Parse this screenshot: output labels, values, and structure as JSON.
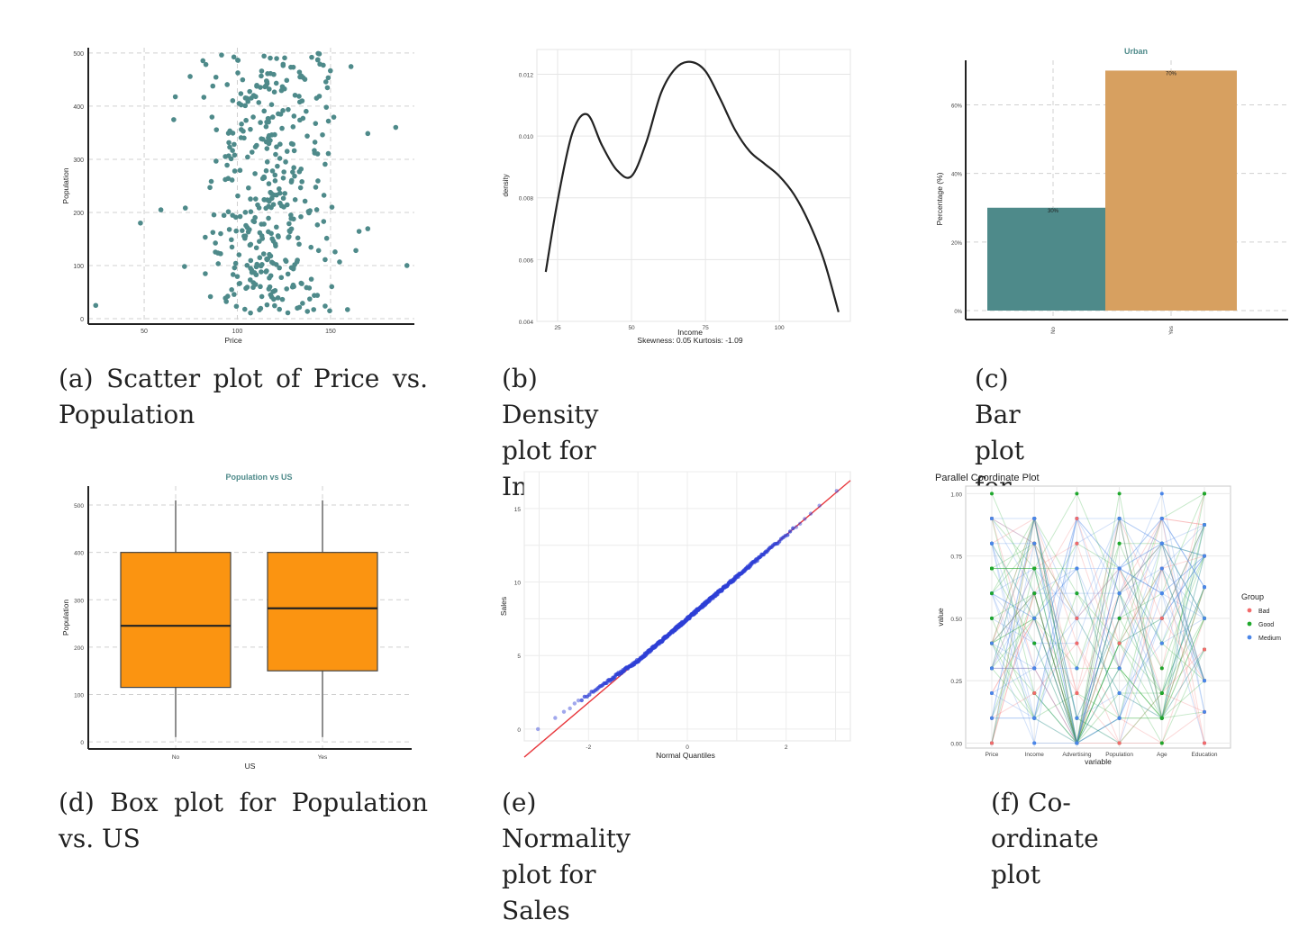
{
  "figures": [
    {
      "caption": "(a) Scatter plot of Price vs. Population"
    },
    {
      "caption": "(b) Density plot for Income"
    },
    {
      "caption": "(c) Bar plot for Urban"
    },
    {
      "caption": "(d) Box plot for Population vs. US"
    },
    {
      "caption": "(e) Normality plot for Sales"
    },
    {
      "caption": "(f) Co-ordinate plot"
    }
  ],
  "colors": {
    "teal": "#4e8a8a",
    "orange_bar": "#d7a060",
    "box_orange": "#fb9411",
    "qq_point": "#2e3fd6",
    "qq_line": "#e8383d",
    "bad": "#f26b6b",
    "good": "#1fa82c",
    "medium": "#4b86e8"
  },
  "chart_data": [
    {
      "type": "scatter",
      "xlabel": "Price",
      "ylabel": "Population",
      "xticks": [
        50,
        100,
        150
      ],
      "yticks": [
        0,
        100,
        200,
        300,
        400,
        500
      ],
      "xlim": [
        20,
        195
      ],
      "ylim": [
        0,
        510
      ],
      "point_count": 400,
      "x_range_main": [
        60,
        170
      ],
      "y_range": [
        10,
        500
      ],
      "outliers": [
        {
          "x": 24,
          "y": 25
        },
        {
          "x": 48,
          "y": 180
        },
        {
          "x": 191,
          "y": 100
        },
        {
          "x": 185,
          "y": 360
        }
      ],
      "grid": "dashed"
    },
    {
      "type": "line",
      "xlabel": "Income",
      "ylabel": "density",
      "subtitle": "Skewness: 0.05 Kurtosis: -1.09",
      "xticks": [
        25,
        50,
        75,
        100
      ],
      "yticks": [
        0.004,
        0.006,
        0.008,
        0.01,
        0.012
      ],
      "ytick_labels": [
        "0.004",
        "0.006",
        "0.008",
        "0.010",
        "0.012"
      ],
      "xlim": [
        18,
        124
      ],
      "ylim": [
        0.004,
        0.0128
      ],
      "x": [
        21,
        25,
        30,
        35,
        40,
        45,
        50,
        55,
        60,
        65,
        70,
        75,
        80,
        85,
        90,
        95,
        100,
        105,
        110,
        115,
        120
      ],
      "y": [
        0.0056,
        0.0079,
        0.0101,
        0.0107,
        0.0097,
        0.0089,
        0.0087,
        0.0098,
        0.0114,
        0.0122,
        0.0124,
        0.0121,
        0.0112,
        0.0102,
        0.0095,
        0.0091,
        0.0087,
        0.0081,
        0.0072,
        0.006,
        0.0043
      ],
      "grid": "on"
    },
    {
      "type": "bar",
      "title": "Urban",
      "ylabel": "Percentage (%)",
      "categories": [
        "No",
        "Yes"
      ],
      "values": [
        30,
        70
      ],
      "labels": [
        "30%",
        "70%"
      ],
      "yticks": [
        0,
        20,
        40,
        60
      ],
      "ytick_labels": [
        "0%",
        "20%",
        "40%",
        "60%"
      ],
      "ylim": [
        0,
        73
      ],
      "grid": "dashed"
    },
    {
      "type": "box",
      "title": "Population vs US",
      "xlabel": "US",
      "ylabel": "Population",
      "categories": [
        "No",
        "Yes"
      ],
      "boxes": [
        {
          "min": 10,
          "q1": 115,
          "median": 245,
          "q3": 400,
          "max": 510
        },
        {
          "min": 10,
          "q1": 150,
          "median": 282,
          "q3": 400,
          "max": 510
        }
      ],
      "yticks": [
        0,
        100,
        200,
        300,
        400,
        500
      ],
      "ylim": [
        -15,
        540
      ],
      "grid": "dashed"
    },
    {
      "type": "scatter",
      "xlabel": "Normal Quantiles",
      "ylabel": "Sales",
      "xticks": [
        -2,
        0,
        2
      ],
      "yticks": [
        0,
        5,
        10,
        15
      ],
      "xlim": [
        -3.3,
        3.3
      ],
      "ylim": [
        -0.8,
        17.5
      ],
      "reference_line": {
        "intercept": 7.5,
        "slope": 2.85
      },
      "point_count": 400,
      "grid": "on"
    },
    {
      "type": "line",
      "title": "Parallel Coordinate Plot",
      "xlabel": "variable",
      "ylabel": "value",
      "categories": [
        "Price",
        "Income",
        "Advertising",
        "Population",
        "Age",
        "Education"
      ],
      "yticks": [
        0,
        0.25,
        0.5,
        0.75,
        1
      ],
      "ytick_labels": [
        "0.00",
        "0.25",
        "0.50",
        "0.75",
        "1.00"
      ],
      "ylim": [
        -0.02,
        1.03
      ],
      "legend": {
        "title": "Group",
        "entries": [
          "Bad",
          "Good",
          "Medium"
        ],
        "position": "right"
      },
      "series": [
        {
          "name": "Bad"
        },
        {
          "name": "Good"
        },
        {
          "name": "Medium"
        }
      ],
      "grid": "on"
    }
  ]
}
